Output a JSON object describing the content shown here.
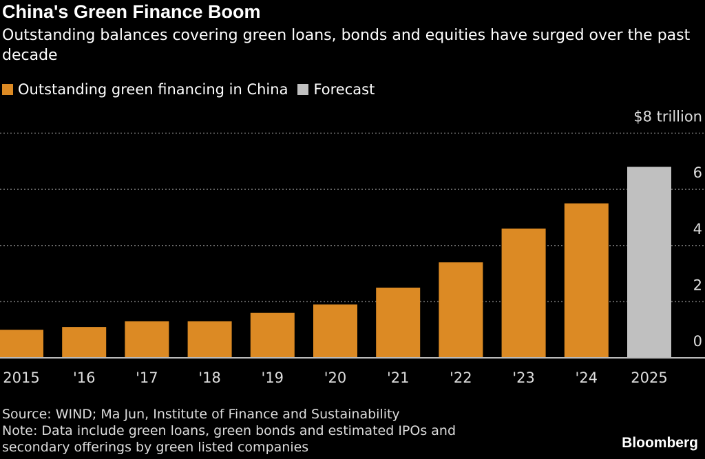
{
  "title": "China's Green Finance Boom",
  "subtitle": "Outstanding balances covering green loans, bonds and equities have surged over the past decade",
  "source": "Source: WIND; Ma Jun, Institute of Finance and Sustainability",
  "note_line1": "Note: Data include green loans, green bonds and estimated IPOs and",
  "note_line2": "secondary offerings by green listed companies",
  "logo": "Bloomberg",
  "colors": {
    "actual": "#dc8a24",
    "forecast": "#c0c0c0",
    "background": "#000000"
  },
  "chart_data": {
    "type": "bar",
    "categories": [
      "2015",
      "'16",
      "'17",
      "'18",
      "'19",
      "'20",
      "'21",
      "'22",
      "'23",
      "'24",
      "2025"
    ],
    "values": [
      1.0,
      1.1,
      1.3,
      1.3,
      1.6,
      1.9,
      2.5,
      3.4,
      4.6,
      5.5,
      6.8
    ],
    "forecast": [
      false,
      false,
      false,
      false,
      false,
      false,
      false,
      false,
      false,
      false,
      true
    ],
    "legend": [
      {
        "name": "Outstanding green financing in China",
        "color": "#dc8a24"
      },
      {
        "name": "Forecast",
        "color": "#c0c0c0"
      }
    ],
    "legend_position": "top-left",
    "yticks": [
      0,
      2,
      4,
      6,
      8
    ],
    "ytick_labels": [
      "0",
      "2",
      "4",
      "6",
      "$8 trillion"
    ],
    "ylim": [
      0,
      8
    ],
    "ylabel": "",
    "xlabel": "",
    "grid": true,
    "y_axis_side": "right"
  }
}
